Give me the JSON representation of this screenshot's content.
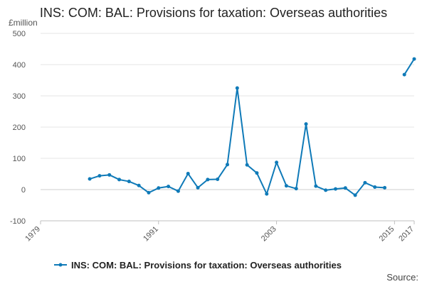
{
  "chart_data": {
    "type": "line",
    "title": "INS: COM: BAL: Provisions for taxation: Overseas authorities",
    "y_unit_label": "£million",
    "ylabel": "£million",
    "xlabel": "",
    "ylim": [
      -100,
      500
    ],
    "xlim": [
      1979,
      2017
    ],
    "y_ticks": [
      -100,
      0,
      100,
      200,
      300,
      400,
      500
    ],
    "x_ticks": [
      1979,
      1991,
      2003,
      2015,
      2017
    ],
    "grid": true,
    "color": "#0f7ab8",
    "series": [
      {
        "name": "INS: COM: BAL: Provisions for taxation: Overseas authorities",
        "points": [
          {
            "x": 1984,
            "y": 34
          },
          {
            "x": 1985,
            "y": 44
          },
          {
            "x": 1986,
            "y": 47
          },
          {
            "x": 1987,
            "y": 32
          },
          {
            "x": 1988,
            "y": 26
          },
          {
            "x": 1989,
            "y": 13
          },
          {
            "x": 1990,
            "y": -10
          },
          {
            "x": 1991,
            "y": 5
          },
          {
            "x": 1992,
            "y": 10
          },
          {
            "x": 1993,
            "y": -5
          },
          {
            "x": 1994,
            "y": 51
          },
          {
            "x": 1995,
            "y": 6
          },
          {
            "x": 1996,
            "y": 32
          },
          {
            "x": 1997,
            "y": 33
          },
          {
            "x": 1998,
            "y": 80
          },
          {
            "x": 1999,
            "y": 325
          },
          {
            "x": 2000,
            "y": 79
          },
          {
            "x": 2001,
            "y": 53
          },
          {
            "x": 2002,
            "y": -14
          },
          {
            "x": 2003,
            "y": 87
          },
          {
            "x": 2004,
            "y": 12
          },
          {
            "x": 2005,
            "y": 3
          },
          {
            "x": 2006,
            "y": 210
          },
          {
            "x": 2007,
            "y": 11
          },
          {
            "x": 2008,
            "y": -2
          },
          {
            "x": 2009,
            "y": 2
          },
          {
            "x": 2010,
            "y": 5
          },
          {
            "x": 2011,
            "y": -18
          },
          {
            "x": 2012,
            "y": 22
          },
          {
            "x": 2013,
            "y": 8
          },
          {
            "x": 2014,
            "y": 6
          },
          {
            "x": 2016,
            "y": 368
          },
          {
            "x": 2017,
            "y": 418
          }
        ],
        "segments_break_after": [
          2014
        ]
      }
    ],
    "legend": {
      "position": "bottom-center",
      "label": "INS: COM: BAL: Provisions for taxation: Overseas authorities"
    }
  },
  "footer": {
    "source_label": "Source:"
  }
}
